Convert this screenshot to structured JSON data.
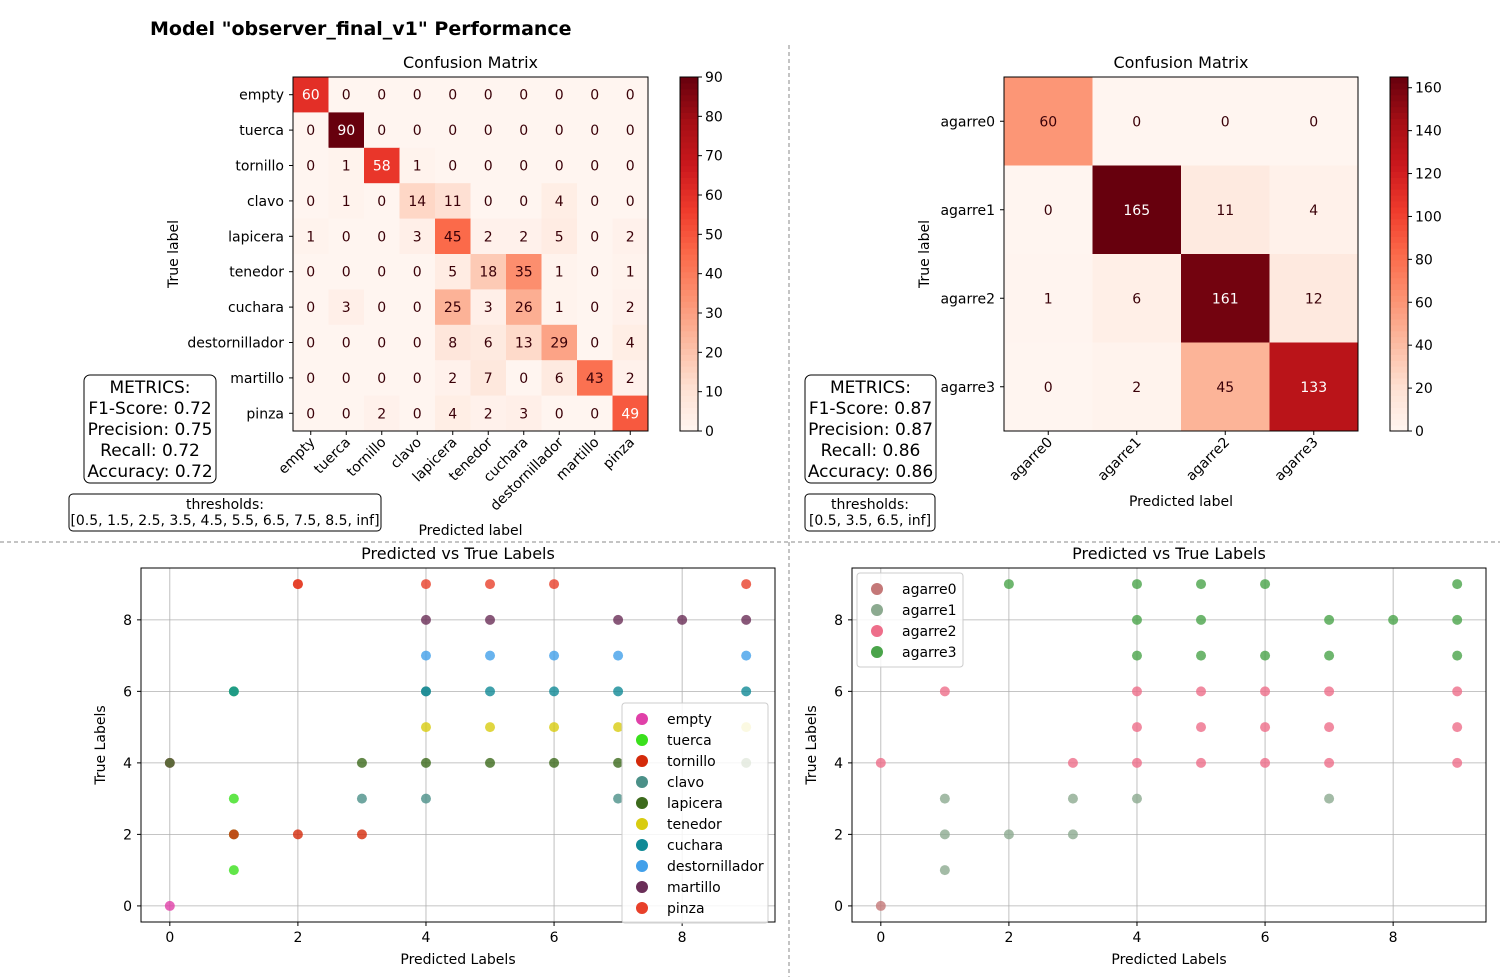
{
  "page_title": "Model \"observer_final_v1\" Performance",
  "chart_data": [
    {
      "type": "heatmap",
      "title": "Confusion Matrix",
      "xlabel": "Predicted label",
      "ylabel": "True label",
      "labels": [
        "empty",
        "tuerca",
        "tornillo",
        "clavo",
        "lapicera",
        "tenedor",
        "cuchara",
        "destornillador",
        "martillo",
        "pinza"
      ],
      "matrix": [
        [
          60,
          0,
          0,
          0,
          0,
          0,
          0,
          0,
          0,
          0
        ],
        [
          0,
          90,
          0,
          0,
          0,
          0,
          0,
          0,
          0,
          0
        ],
        [
          0,
          1,
          58,
          1,
          0,
          0,
          0,
          0,
          0,
          0
        ],
        [
          0,
          1,
          0,
          14,
          11,
          0,
          0,
          4,
          0,
          0
        ],
        [
          1,
          0,
          0,
          3,
          45,
          2,
          2,
          5,
          0,
          2
        ],
        [
          0,
          0,
          0,
          0,
          5,
          18,
          35,
          1,
          0,
          1
        ],
        [
          0,
          3,
          0,
          0,
          25,
          3,
          26,
          1,
          0,
          2
        ],
        [
          0,
          0,
          0,
          0,
          8,
          6,
          13,
          29,
          0,
          4
        ],
        [
          0,
          0,
          0,
          0,
          2,
          7,
          0,
          6,
          43,
          2
        ],
        [
          0,
          0,
          2,
          0,
          4,
          2,
          3,
          0,
          0,
          49
        ]
      ],
      "colorbar": {
        "min": 0,
        "max": 90,
        "ticks": [
          0,
          10,
          20,
          30,
          40,
          50,
          60,
          70,
          80,
          90
        ],
        "colormap": "Reds"
      },
      "metrics": {
        "header": "METRICS:",
        "lines": [
          "F1-Score: 0.72",
          "Precision: 0.75",
          "Recall: 0.72",
          "Accuracy: 0.72"
        ]
      },
      "thresholds": {
        "header": "thresholds:",
        "value": "[0.5, 1.5, 2.5, 3.5, 4.5, 5.5, 6.5, 7.5, 8.5, inf]"
      }
    },
    {
      "type": "heatmap",
      "title": "Confusion Matrix",
      "xlabel": "Predicted label",
      "ylabel": "True label",
      "labels": [
        "agarre0",
        "agarre1",
        "agarre2",
        "agarre3"
      ],
      "matrix": [
        [
          60,
          0,
          0,
          0
        ],
        [
          0,
          165,
          11,
          4
        ],
        [
          1,
          6,
          161,
          12
        ],
        [
          0,
          2,
          45,
          133
        ]
      ],
      "colorbar": {
        "min": 0,
        "max": 165,
        "ticks": [
          0,
          20,
          40,
          60,
          80,
          100,
          120,
          140,
          160
        ],
        "colormap": "Reds"
      },
      "metrics": {
        "header": "METRICS:",
        "lines": [
          "F1-Score: 0.87",
          "Precision: 0.87",
          "Recall: 0.86",
          "Accuracy: 0.86"
        ]
      },
      "thresholds": {
        "header": "thresholds:",
        "value": "[0.5, 3.5, 6.5, inf]"
      }
    },
    {
      "type": "scatter",
      "title": "Predicted vs True Labels",
      "xlabel": "Predicted Labels",
      "ylabel": "True Labels",
      "xlim": [
        -0.45,
        9.45
      ],
      "ylim": [
        -0.45,
        9.45
      ],
      "xticks": [
        0,
        2,
        4,
        6,
        8
      ],
      "yticks": [
        0,
        2,
        4,
        6,
        8
      ],
      "grid": true,
      "legend_position": "center-right",
      "series": [
        {
          "name": "empty",
          "color": "#e040a8",
          "points": [
            [
              0,
              0
            ],
            [
              0,
              4
            ]
          ]
        },
        {
          "name": "tuerca",
          "color": "#3ae01c",
          "points": [
            [
              1,
              1
            ],
            [
              1,
              3
            ],
            [
              1,
              2
            ],
            [
              1,
              6
            ]
          ]
        },
        {
          "name": "tornillo",
          "color": "#d42a0a",
          "points": [
            [
              2,
              2
            ],
            [
              3,
              2
            ],
            [
              2,
              9
            ],
            [
              1,
              2
            ]
          ]
        },
        {
          "name": "clavo",
          "color": "#4b9088",
          "points": [
            [
              3,
              3
            ],
            [
              4,
              3
            ],
            [
              7,
              3
            ],
            [
              4,
              6
            ]
          ]
        },
        {
          "name": "lapicera",
          "color": "#3c6a1c",
          "points": [
            [
              4,
              4
            ],
            [
              3,
              4
            ],
            [
              5,
              4
            ],
            [
              6,
              4
            ],
            [
              7,
              4
            ],
            [
              9,
              4
            ],
            [
              0,
              4
            ]
          ]
        },
        {
          "name": "tenedor",
          "color": "#d8cc10",
          "points": [
            [
              5,
              5
            ],
            [
              6,
              5
            ],
            [
              4,
              5
            ],
            [
              7,
              5
            ],
            [
              9,
              5
            ]
          ]
        },
        {
          "name": "cuchara",
          "color": "#108a96",
          "points": [
            [
              6,
              6
            ],
            [
              4,
              6
            ],
            [
              5,
              6
            ],
            [
              1,
              6
            ],
            [
              7,
              6
            ],
            [
              9,
              6
            ]
          ]
        },
        {
          "name": "destornillador",
          "color": "#42a0ea",
          "points": [
            [
              7,
              7
            ],
            [
              4,
              7
            ],
            [
              5,
              7
            ],
            [
              6,
              7
            ],
            [
              9,
              7
            ]
          ]
        },
        {
          "name": "martillo",
          "color": "#6a2e58",
          "points": [
            [
              8,
              8
            ],
            [
              4,
              8
            ],
            [
              5,
              8
            ],
            [
              7,
              8
            ],
            [
              9,
              8
            ]
          ]
        },
        {
          "name": "pinza",
          "color": "#e8402a",
          "points": [
            [
              9,
              9
            ],
            [
              2,
              9
            ],
            [
              4,
              9
            ],
            [
              5,
              9
            ],
            [
              6,
              9
            ]
          ]
        }
      ]
    },
    {
      "type": "scatter",
      "title": "Predicted vs True Labels",
      "xlabel": "Predicted Labels",
      "ylabel": "True Labels",
      "xlim": [
        -0.45,
        9.45
      ],
      "ylim": [
        -0.45,
        9.45
      ],
      "xticks": [
        0,
        2,
        4,
        6,
        8
      ],
      "yticks": [
        0,
        2,
        4,
        6,
        8
      ],
      "grid": true,
      "legend_position": "upper-left",
      "series": [
        {
          "name": "agarre0",
          "color": "#c47878",
          "points": [
            [
              0,
              0
            ]
          ]
        },
        {
          "name": "agarre1",
          "color": "#8caa90",
          "points": [
            [
              1,
              1
            ],
            [
              1,
              2
            ],
            [
              1,
              3
            ],
            [
              2,
              2
            ],
            [
              3,
              2
            ],
            [
              3,
              3
            ],
            [
              4,
              3
            ],
            [
              7,
              3
            ]
          ]
        },
        {
          "name": "agarre2",
          "color": "#ee6e8a",
          "points": [
            [
              0,
              4
            ],
            [
              1,
              6
            ],
            [
              3,
              4
            ],
            [
              4,
              4
            ],
            [
              4,
              5
            ],
            [
              4,
              6
            ],
            [
              5,
              4
            ],
            [
              5,
              5
            ],
            [
              5,
              6
            ],
            [
              6,
              4
            ],
            [
              6,
              5
            ],
            [
              6,
              6
            ],
            [
              7,
              4
            ],
            [
              7,
              5
            ],
            [
              7,
              6
            ],
            [
              9,
              4
            ],
            [
              9,
              5
            ],
            [
              9,
              6
            ]
          ]
        },
        {
          "name": "agarre3",
          "color": "#4aa44a",
          "points": [
            [
              2,
              9
            ],
            [
              4,
              9
            ],
            [
              4,
              8
            ],
            [
              4,
              7
            ],
            [
              5,
              9
            ],
            [
              5,
              8
            ],
            [
              5,
              7
            ],
            [
              6,
              9
            ],
            [
              6,
              7
            ],
            [
              7,
              8
            ],
            [
              7,
              7
            ],
            [
              8,
              8
            ],
            [
              9,
              9
            ],
            [
              9,
              8
            ],
            [
              9,
              7
            ]
          ]
        }
      ]
    }
  ]
}
